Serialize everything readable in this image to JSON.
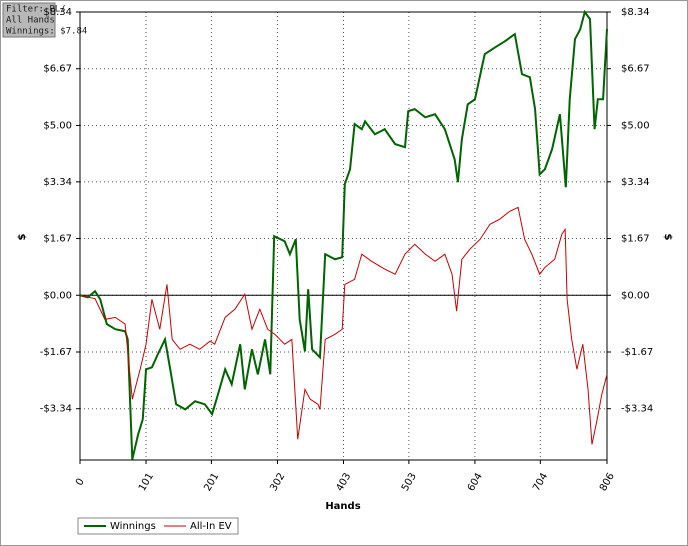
{
  "chart_data": {
    "type": "line",
    "annotations": [
      "Filter: PL/",
      "All Hands",
      "Winnings: $7.84"
    ],
    "xlabel": "Hands",
    "ylabel": "$",
    "xlim": [
      0,
      806
    ],
    "ylim": [
      -4.85,
      8.34
    ],
    "xticks": [
      0,
      101,
      201,
      302,
      403,
      503,
      604,
      704,
      806
    ],
    "yticks": [
      {
        "value": 8.34,
        "label": "$8.34"
      },
      {
        "value": 6.67,
        "label": "$6.67"
      },
      {
        "value": 5.0,
        "label": "$5.00"
      },
      {
        "value": 3.34,
        "label": "$3.34"
      },
      {
        "value": 1.67,
        "label": "$1.67"
      },
      {
        "value": 0,
        "label": "$0.00"
      },
      {
        "value": -1.67,
        "label": "-$1.67"
      },
      {
        "value": -3.34,
        "label": "-$3.34"
      }
    ],
    "grid": true,
    "legend": "bottom-left",
    "series": [
      {
        "name": "Winnings",
        "color": "#006400",
        "x": [
          0,
          12,
          23,
          31,
          41,
          54,
          69,
          73,
          80,
          89,
          96,
          101,
          110,
          119,
          130,
          138,
          147,
          161,
          176,
          191,
          202,
          211,
          222,
          232,
          245,
          252,
          263,
          272,
          283,
          291,
          297,
          313,
          321,
          330,
          336,
          344,
          349,
          355,
          367,
          375,
          390,
          401,
          405,
          413,
          420,
          431,
          436,
          451,
          466,
          482,
          497,
          502,
          512,
          528,
          543,
          558,
          573,
          578,
          584,
          593,
          604,
          619,
          635,
          650,
          665,
          676,
          688,
          696,
          703,
          711,
          722,
          734,
          743,
          749,
          757,
          765,
          772,
          780,
          787,
          792,
          800,
          806
        ],
        "values": [
          0,
          -0.06,
          0.12,
          -0.12,
          -0.85,
          -1.0,
          -1.06,
          -1.3,
          -4.83,
          -4.09,
          -3.65,
          -2.18,
          -2.12,
          -1.74,
          -1.3,
          -2.18,
          -3.21,
          -3.36,
          -3.12,
          -3.21,
          -3.5,
          -2.92,
          -2.18,
          -2.62,
          -1.44,
          -2.77,
          -1.59,
          -2.33,
          -1.3,
          -2.33,
          1.74,
          1.59,
          1.21,
          1.65,
          -0.71,
          -1.65,
          0.18,
          -1.59,
          -1.83,
          1.21,
          1.06,
          1.12,
          3.27,
          3.71,
          5.04,
          4.89,
          5.12,
          4.74,
          4.89,
          4.45,
          4.36,
          5.42,
          5.48,
          5.24,
          5.33,
          4.89,
          4.0,
          3.33,
          4.59,
          5.62,
          5.77,
          7.1,
          7.3,
          7.48,
          7.69,
          6.51,
          6.42,
          5.48,
          3.56,
          3.71,
          4.3,
          5.33,
          3.18,
          5.77,
          7.54,
          7.83,
          8.34,
          8.13,
          4.89,
          5.77,
          5.77,
          7.84
        ]
      },
      {
        "name": "All-In EV",
        "color": "#cc0000",
        "x": [
          0,
          23,
          38,
          54,
          69,
          80,
          92,
          101,
          110,
          122,
          133,
          141,
          153,
          168,
          183,
          199,
          206,
          222,
          237,
          252,
          263,
          275,
          287,
          298,
          313,
          324,
          333,
          344,
          352,
          364,
          367,
          375,
          390,
          401,
          405,
          420,
          431,
          446,
          466,
          482,
          497,
          512,
          528,
          543,
          558,
          569,
          576,
          584,
          596,
          612,
          627,
          642,
          657,
          670,
          680,
          691,
          703,
          711,
          726,
          737,
          742,
          745,
          752,
          760,
          769,
          777,
          783,
          791,
          798,
          806
        ],
        "values": [
          0,
          -0.1,
          -0.71,
          -0.65,
          -0.85,
          -3.06,
          -2.18,
          -1.44,
          -0.12,
          -1.0,
          0.32,
          -1.3,
          -1.59,
          -1.44,
          -1.59,
          -1.35,
          -1.44,
          -0.65,
          -0.41,
          0.03,
          -1.0,
          -0.41,
          -1.0,
          -1.15,
          -1.44,
          -1.3,
          -4.24,
          -2.77,
          -3.06,
          -3.21,
          -3.36,
          -1.3,
          -1.15,
          -1.0,
          0.32,
          0.47,
          1.21,
          1.0,
          0.77,
          0.62,
          1.21,
          1.5,
          1.21,
          1.0,
          1.21,
          0.62,
          -0.47,
          1.06,
          1.35,
          1.65,
          2.09,
          2.24,
          2.47,
          2.59,
          1.65,
          1.21,
          0.62,
          0.82,
          1.06,
          1.8,
          1.94,
          -0.12,
          -1.3,
          -2.18,
          -1.44,
          -2.77,
          -4.39,
          -3.65,
          -2.92,
          -2.33
        ]
      }
    ]
  }
}
